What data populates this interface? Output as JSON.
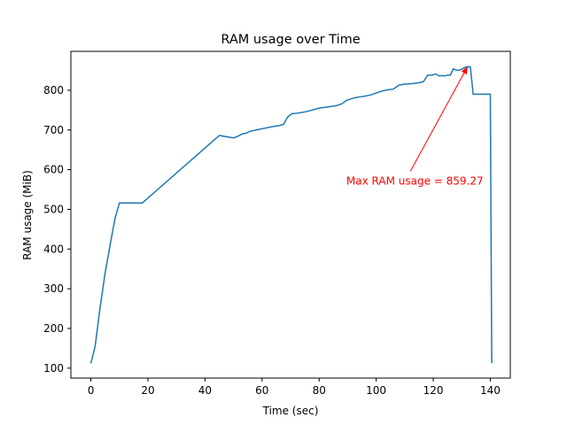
{
  "chart_data": {
    "type": "line",
    "title": "RAM usage over Time",
    "xlabel": "Time (sec)",
    "ylabel": "RAM usage (MiB)",
    "xlim": [
      -7,
      147
    ],
    "ylim": [
      75,
      898
    ],
    "xticks": [
      0,
      20,
      40,
      60,
      80,
      100,
      120,
      140
    ],
    "yticks": [
      100,
      200,
      300,
      400,
      500,
      600,
      700,
      800
    ],
    "grid": false,
    "series": [
      {
        "color": "#1f77b4",
        "x": [
          0,
          1.5,
          3,
          5,
          7,
          8.5,
          10,
          12,
          15,
          18,
          25,
          35,
          45,
          50,
          51.5,
          53,
          54.5,
          56,
          58,
          60,
          62,
          64,
          66,
          67.5,
          69,
          70.5,
          72,
          74,
          76,
          78,
          80,
          82,
          84,
          86,
          88,
          89.5,
          91,
          92.5,
          94,
          96,
          98,
          100,
          102,
          104,
          106,
          108,
          109.5,
          111,
          113,
          115,
          116.5,
          118,
          119.5,
          121,
          122,
          123,
          124,
          125,
          126,
          127,
          128,
          129,
          130,
          131,
          132,
          133,
          134,
          135,
          136,
          137,
          138,
          139,
          140,
          140.5
        ],
        "y": [
          112,
          155,
          240,
          340,
          420,
          478,
          516,
          516,
          516,
          516,
          560,
          623,
          686,
          680,
          684,
          690,
          692,
          697,
          700,
          703,
          706,
          709,
          711,
          714,
          733,
          741,
          742,
          744,
          747,
          751,
          755,
          757,
          759,
          761,
          766,
          774,
          778,
          781,
          783,
          785,
          788,
          793,
          798,
          801,
          803,
          813,
          815,
          816,
          817,
          819,
          821,
          838,
          838,
          841,
          836,
          837,
          836,
          838,
          838,
          854,
          851,
          850,
          853,
          857,
          859.27,
          859,
          790,
          790,
          790,
          790,
          790,
          790,
          790,
          113
        ]
      }
    ],
    "annotation": {
      "text": "Max RAM usage = 859.27",
      "color": "#ff0000",
      "point": [
        132,
        859.27
      ],
      "text_anchor_point": [
        112,
        596
      ]
    }
  }
}
